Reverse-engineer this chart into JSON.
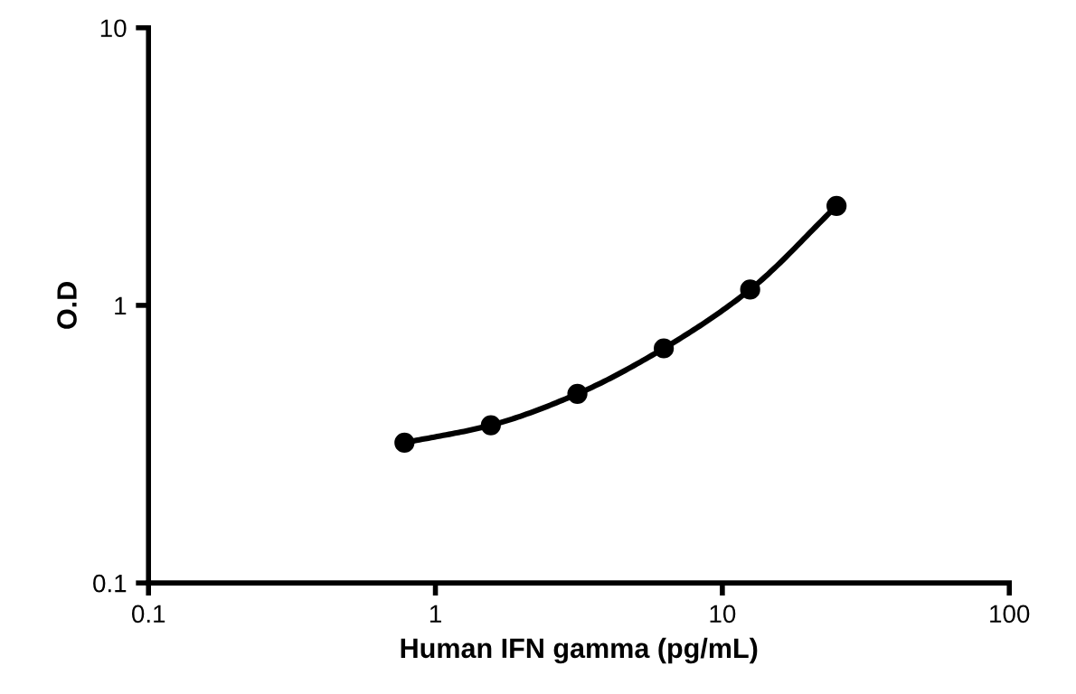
{
  "chart_data": {
    "type": "line",
    "xlabel": "Human IFN gamma (pg/mL)",
    "ylabel": "O.D",
    "x": [
      0.78,
      1.56,
      3.125,
      6.25,
      12.5,
      25
    ],
    "series": [
      {
        "color": "#000000",
        "values": [
          0.32,
          0.37,
          0.48,
          0.7,
          1.14,
          2.28
        ]
      }
    ],
    "log": "xy",
    "xlim": [
      0.1,
      100
    ],
    "ylim": [
      0.1,
      10
    ],
    "xticks": [
      0.1,
      1,
      10,
      100
    ],
    "yticks": [
      0.1,
      1,
      10
    ],
    "marker": "circle",
    "line_style": "solid"
  }
}
